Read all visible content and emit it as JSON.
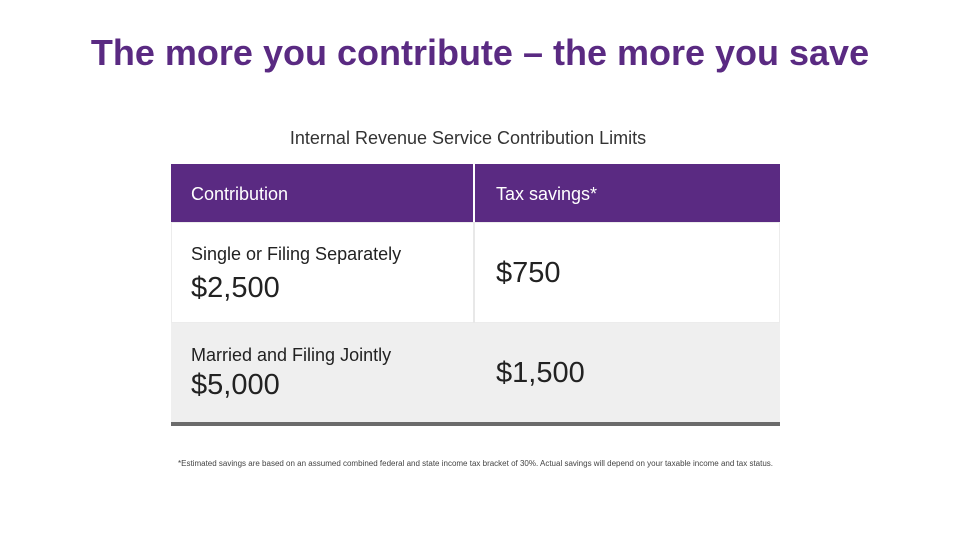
{
  "title": "The more you contribute – the more you save",
  "subtitle": "Internal Revenue Service Contribution Limits",
  "table": {
    "headers": [
      "Contribution",
      "Tax savings*"
    ],
    "rows": [
      {
        "category": "Single or Filing Separately",
        "contribution": "$2,500",
        "savings": "$750"
      },
      {
        "category": "Married and Filing Jointly",
        "contribution": "$5,000",
        "savings": "$1,500"
      }
    ]
  },
  "footnote": "*Estimated savings are based on an assumed combined federal and state income tax bracket of 30%. Actual savings will depend on your taxable income and tax status.",
  "colors": {
    "accent": "#5a2a82",
    "header_text": "#ffffff",
    "row_alt": "#efefef",
    "rule": "#6b6b6b"
  }
}
